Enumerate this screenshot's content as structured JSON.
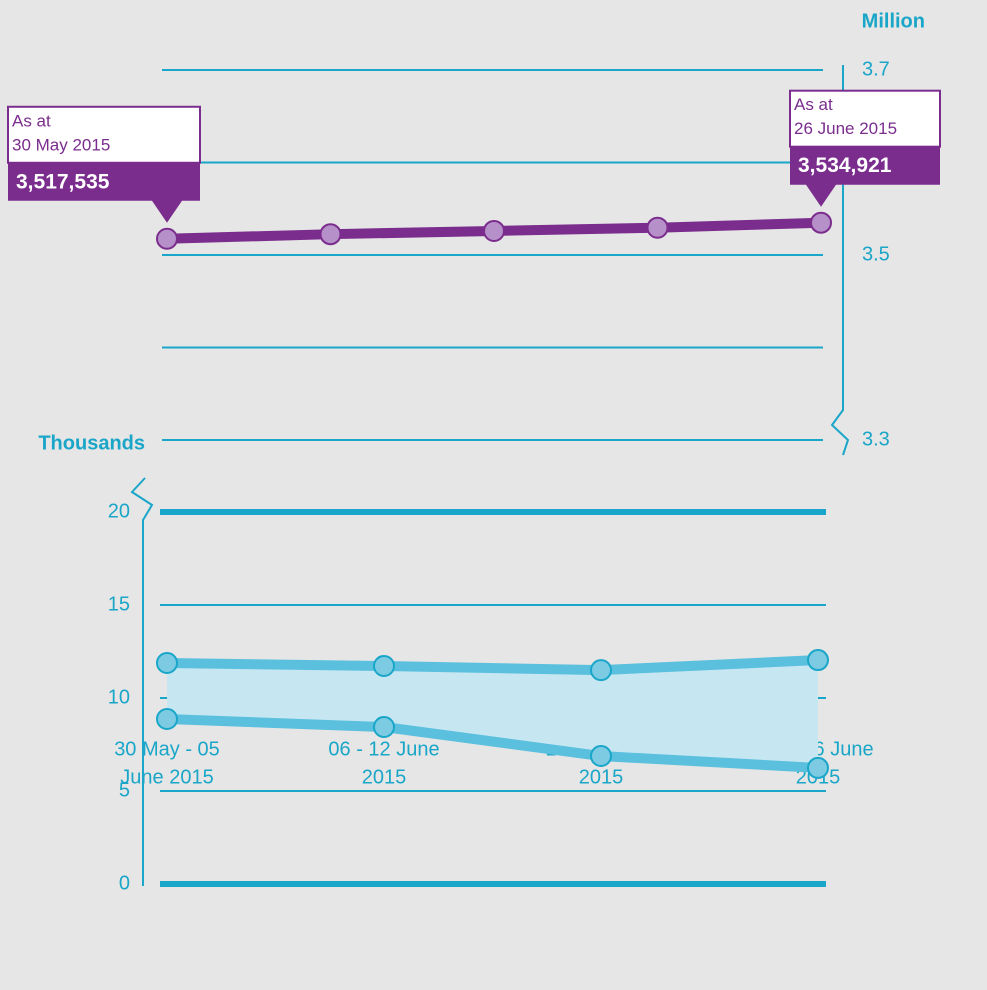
{
  "chart_data": [
    {
      "type": "line",
      "y_axis_label": "Million",
      "categories": [
        null,
        null,
        null,
        null,
        null
      ],
      "values": [
        3.517535,
        3.5225,
        3.526,
        3.5295,
        3.534921
      ],
      "value_labels": [
        "3,517,535",
        null,
        null,
        null,
        "3,534,921"
      ],
      "callout_texts": [
        [
          "As at",
          "30 May 2015"
        ],
        null,
        null,
        null,
        [
          "As at",
          "26 June 2015"
        ]
      ],
      "color": "#7b2d8e",
      "ylim": [
        3.3,
        3.7
      ],
      "yticks": [
        3.3,
        3.5,
        3.7
      ],
      "grid": true,
      "axis_side": "right"
    },
    {
      "type": "band",
      "y_axis_label": "Thousands",
      "categories": [
        [
          "30 May - 05",
          "June 2015"
        ],
        [
          "06 - 12 June",
          "2015"
        ],
        [
          "13 - 19 June",
          "2015"
        ],
        [
          "20 - 26 June",
          "2015"
        ]
      ],
      "series": [
        {
          "color": "#5bc0de",
          "values": [
            11.88,
            11.72,
            11.5,
            12.04
          ]
        },
        {
          "color": "#5bc0de",
          "values": [
            8.87,
            8.44,
            6.88,
            6.24
          ]
        }
      ],
      "band_color": "#c6e7f2",
      "ylim": [
        0,
        20
      ],
      "yticks": [
        0,
        5,
        10,
        15,
        20
      ],
      "grid": true,
      "axis_side": "left"
    }
  ]
}
